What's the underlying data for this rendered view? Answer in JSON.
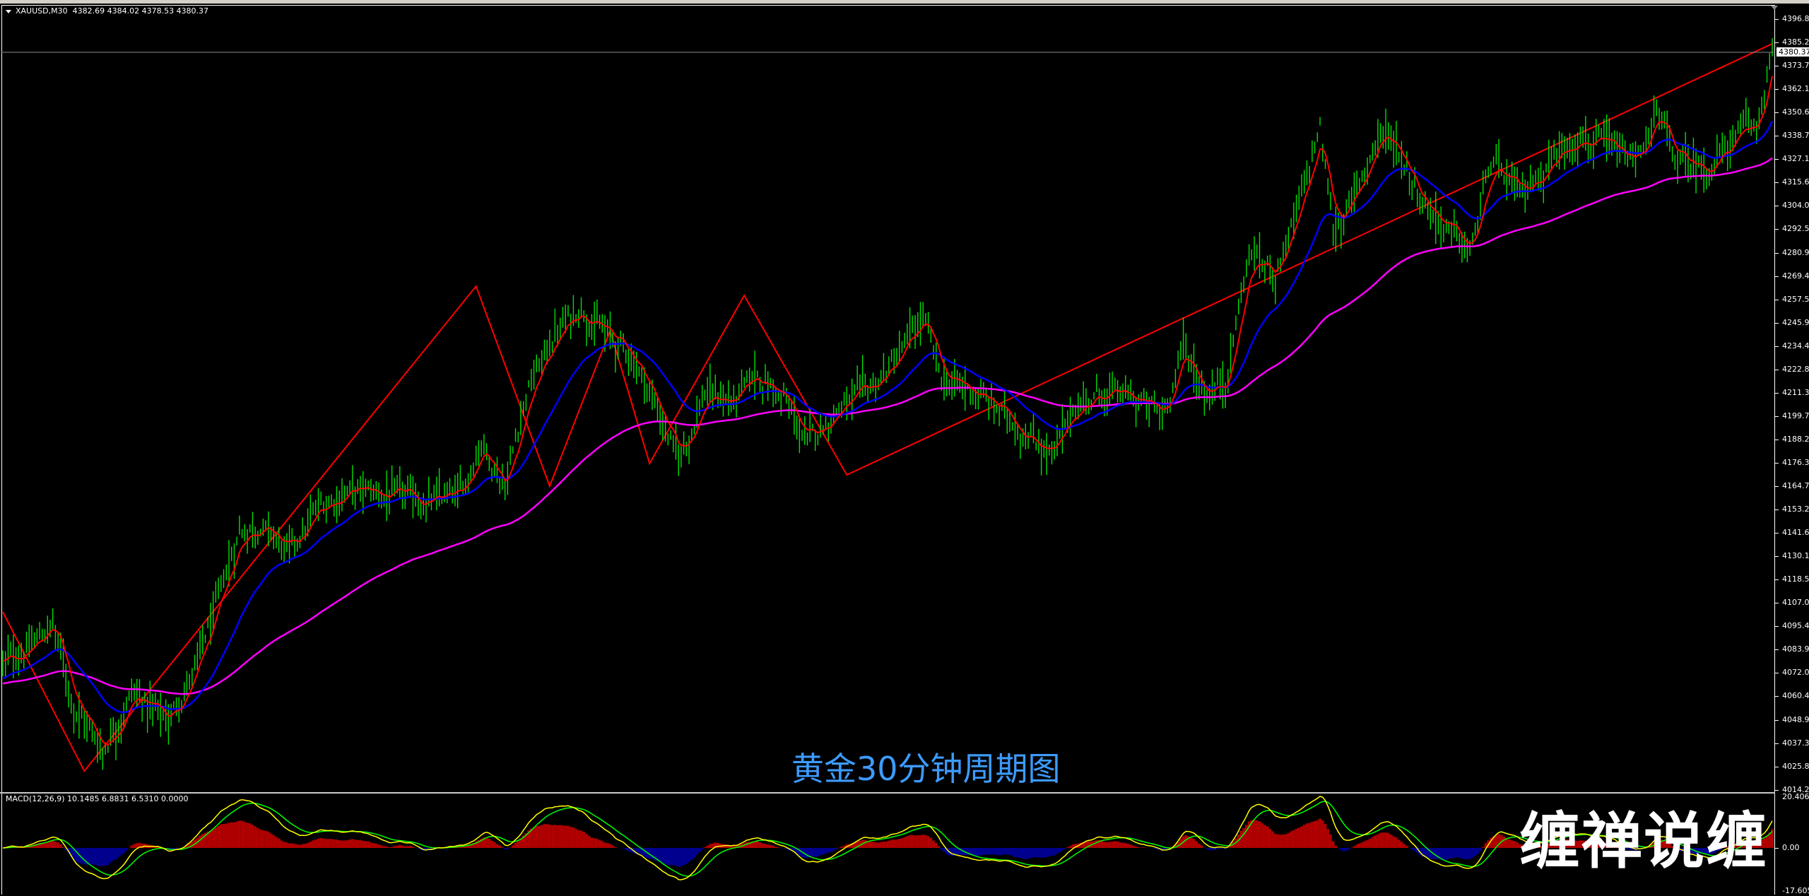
{
  "header": {
    "symbol": "XAUUSD,M30",
    "ohlc": "4382.69 4384.02 4378.53 4380.37"
  },
  "indicator": {
    "label": "MACD(12,26,9) 10.1485 6.8831 6.5310 0.0000",
    "axis": [
      "20.4069",
      "0.00",
      "-17.6053"
    ]
  },
  "caption": "黄金30分钟周期图",
  "watermark": "缠禅说缠",
  "current_price": "4380.37",
  "colors": {
    "background": "#000000",
    "bars": "#00e000",
    "fast_ma": "#ff0000",
    "mid_ma": "#0000ff",
    "slow_ma": "#ff00ff",
    "zigzag": "#ff0000",
    "macd_positive": "#b00000",
    "macd_negative": "#000090",
    "macd_line": "#ffff00",
    "signal_line": "#00ff00"
  },
  "chart_data": {
    "type": "line",
    "title": "",
    "xlabel": "",
    "ylabel": "",
    "ylim": [
      4014.25,
      4396.8
    ],
    "grid": false,
    "y_ticks": [
      "4396.80",
      "4385.25",
      "4373.70",
      "4362.15",
      "4350.60",
      "4338.70",
      "4327.15",
      "4315.60",
      "4304.05",
      "4292.50",
      "4280.95",
      "4269.40",
      "4257.50",
      "4245.95",
      "4234.40",
      "4222.85",
      "4211.30",
      "4199.75",
      "4188.20",
      "4176.30",
      "4164.75",
      "4153.20",
      "4141.65",
      "4130.10",
      "4118.55",
      "4107.00",
      "4095.45",
      "4083.90",
      "4072.00",
      "4060.45",
      "4048.90",
      "4037.35",
      "4025.80",
      "4014.25"
    ],
    "price_path": [
      [
        0,
        4078
      ],
      [
        11,
        4087
      ],
      [
        19,
        4098
      ],
      [
        27,
        4058
      ],
      [
        38,
        4035
      ],
      [
        49,
        4064
      ],
      [
        63,
        4050
      ],
      [
        73,
        4075
      ],
      [
        82,
        4109
      ],
      [
        90,
        4144
      ],
      [
        98,
        4147
      ],
      [
        109,
        4132
      ],
      [
        120,
        4155
      ],
      [
        131,
        4164
      ],
      [
        147,
        4161
      ],
      [
        163,
        4158
      ],
      [
        174,
        4161
      ],
      [
        182,
        4189
      ],
      [
        191,
        4166
      ],
      [
        199,
        4212
      ],
      [
        210,
        4241
      ],
      [
        220,
        4255
      ],
      [
        229,
        4241
      ],
      [
        240,
        4229
      ],
      [
        250,
        4201
      ],
      [
        257,
        4178
      ],
      [
        267,
        4212
      ],
      [
        278,
        4207
      ],
      [
        287,
        4221
      ],
      [
        297,
        4209
      ],
      [
        306,
        4186
      ],
      [
        318,
        4206
      ],
      [
        329,
        4212
      ],
      [
        340,
        4229
      ],
      [
        350,
        4249
      ],
      [
        357,
        4218
      ],
      [
        370,
        4212
      ],
      [
        381,
        4201
      ],
      [
        392,
        4189
      ],
      [
        400,
        4181
      ],
      [
        408,
        4206
      ],
      [
        419,
        4212
      ],
      [
        430,
        4209
      ],
      [
        441,
        4201
      ],
      [
        449,
        4235
      ],
      [
        457,
        4212
      ],
      [
        465,
        4218
      ],
      [
        474,
        4281
      ],
      [
        484,
        4272
      ],
      [
        493,
        4304
      ],
      [
        501,
        4343
      ],
      [
        506,
        4292
      ],
      [
        514,
        4309
      ],
      [
        524,
        4343
      ],
      [
        531,
        4332
      ],
      [
        539,
        4309
      ],
      [
        550,
        4292
      ],
      [
        558,
        4281
      ],
      [
        566,
        4326
      ],
      [
        577,
        4309
      ],
      [
        588,
        4326
      ],
      [
        599,
        4341
      ],
      [
        610,
        4332
      ],
      [
        621,
        4326
      ],
      [
        629,
        4349
      ],
      [
        637,
        4326
      ],
      [
        648,
        4323
      ],
      [
        659,
        4338
      ],
      [
        667,
        4343
      ],
      [
        673,
        4383
      ]
    ],
    "zigzag": [
      [
        0,
        4103.6
      ],
      [
        31,
        4024.9
      ],
      [
        180,
        4264.7
      ],
      [
        208,
        4165.8
      ],
      [
        231,
        4242.7
      ],
      [
        246,
        4177.0
      ],
      [
        282,
        4260.1
      ],
      [
        321,
        4171.4
      ],
      [
        673,
        4384.6
      ]
    ],
    "macd_ylim": [
      -17.6053,
      20.4069
    ]
  }
}
